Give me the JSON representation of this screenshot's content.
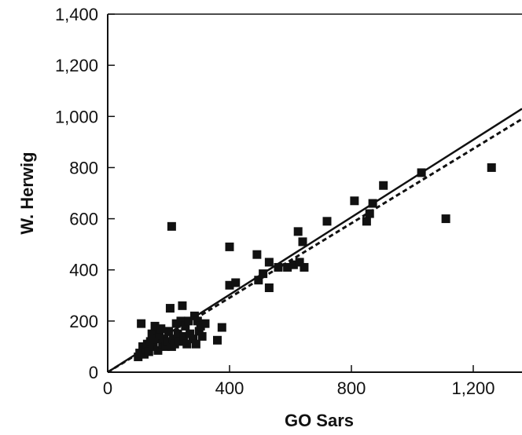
{
  "chart_data": {
    "type": "scatter",
    "title": "",
    "xlabel": "GO Sars",
    "ylabel": "W. Herwig",
    "xlim": [
      0,
      1360
    ],
    "ylim": [
      0,
      1400
    ],
    "xticks": [
      0,
      400,
      800,
      1200
    ],
    "yticks": [
      0,
      200,
      400,
      600,
      800,
      1000,
      1200,
      1400
    ],
    "xtick_labels": [
      "0",
      "400",
      "800",
      "1,200"
    ],
    "ytick_labels": [
      "0",
      "200",
      "400",
      "600",
      "800",
      "1,000",
      "1,200",
      "1,400"
    ],
    "grid": false,
    "marker": "square",
    "colors": {
      "marker": "#111111",
      "line": "#111111",
      "axis": "#111111"
    },
    "series": [
      {
        "points": [
          [
            100,
            60
          ],
          [
            105,
            75
          ],
          [
            110,
            190
          ],
          [
            115,
            100
          ],
          [
            120,
            70
          ],
          [
            125,
            90
          ],
          [
            130,
            110
          ],
          [
            135,
            80
          ],
          [
            140,
            120
          ],
          [
            145,
            150
          ],
          [
            150,
            100
          ],
          [
            155,
            180
          ],
          [
            160,
            130
          ],
          [
            165,
            85
          ],
          [
            170,
            150
          ],
          [
            175,
            170
          ],
          [
            180,
            110
          ],
          [
            185,
            130
          ],
          [
            190,
            100
          ],
          [
            195,
            120
          ],
          [
            200,
            160
          ],
          [
            205,
            250
          ],
          [
            210,
            570
          ],
          [
            210,
            100
          ],
          [
            215,
            130
          ],
          [
            220,
            110
          ],
          [
            225,
            190
          ],
          [
            230,
            150
          ],
          [
            235,
            120
          ],
          [
            240,
            200
          ],
          [
            245,
            260
          ],
          [
            250,
            140
          ],
          [
            255,
            180
          ],
          [
            260,
            110
          ],
          [
            265,
            200
          ],
          [
            270,
            150
          ],
          [
            280,
            130
          ],
          [
            285,
            220
          ],
          [
            290,
            110
          ],
          [
            295,
            200
          ],
          [
            300,
            160
          ],
          [
            305,
            180
          ],
          [
            310,
            140
          ],
          [
            320,
            190
          ],
          [
            360,
            125
          ],
          [
            375,
            175
          ],
          [
            400,
            490
          ],
          [
            400,
            340
          ],
          [
            420,
            350
          ],
          [
            490,
            460
          ],
          [
            495,
            360
          ],
          [
            510,
            385
          ],
          [
            530,
            430
          ],
          [
            530,
            330
          ],
          [
            560,
            410
          ],
          [
            590,
            410
          ],
          [
            610,
            420
          ],
          [
            625,
            550
          ],
          [
            630,
            430
          ],
          [
            640,
            510
          ],
          [
            645,
            410
          ],
          [
            720,
            590
          ],
          [
            810,
            670
          ],
          [
            850,
            590
          ],
          [
            860,
            620
          ],
          [
            870,
            660
          ],
          [
            905,
            730
          ],
          [
            1030,
            780
          ],
          [
            1110,
            600
          ],
          [
            1260,
            800
          ]
        ]
      }
    ],
    "fit_lines": [
      {
        "style": "solid",
        "x": [
          0,
          1360
        ],
        "y": [
          0,
          1030
        ]
      },
      {
        "style": "dashed",
        "x": [
          0,
          1360
        ],
        "y": [
          0,
          990
        ]
      }
    ]
  }
}
